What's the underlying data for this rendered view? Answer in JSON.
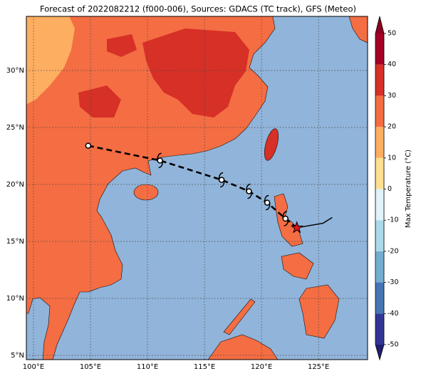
{
  "title": "Forecast of 2022082212 (f000-006), Sources: GDACS (TC track), GFS (Meteo)",
  "map": {
    "xlim": [
      99.375,
      129.3
    ],
    "ylim": [
      4.625,
      34.75
    ],
    "lon_ticks": [
      {
        "value": 100,
        "label": "100°E"
      },
      {
        "value": 105,
        "label": "105°E"
      },
      {
        "value": 110,
        "label": "110°E"
      },
      {
        "value": 115,
        "label": "115°E"
      },
      {
        "value": 120,
        "label": "120°E"
      },
      {
        "value": 125,
        "label": "125°E"
      }
    ],
    "lat_ticks": [
      {
        "value": 5,
        "label": "5°N"
      },
      {
        "value": 10,
        "label": "10°N"
      },
      {
        "value": 15,
        "label": "15°N"
      },
      {
        "value": 20,
        "label": "20°N"
      },
      {
        "value": 25,
        "label": "25°N"
      },
      {
        "value": 30,
        "label": "30°N"
      }
    ],
    "ocean_color": "#91b4da"
  },
  "colorbar": {
    "label": "Max Temperature (°C)",
    "ticks": [
      -50,
      -40,
      -30,
      -20,
      -10,
      0,
      10,
      20,
      30,
      40,
      50
    ],
    "colors": [
      "#313695",
      "#4575b4",
      "#74add1",
      "#abd9e9",
      "#e0f3f8",
      "#fee090",
      "#fdae61",
      "#f46d43",
      "#d73027",
      "#a50026"
    ],
    "under_color": "#1f1f70",
    "over_color": "#8b0020"
  },
  "track": {
    "forecast": [
      [
        104.8,
        23.4
      ],
      [
        111.1,
        22.1
      ],
      [
        116.5,
        20.4
      ],
      [
        118.9,
        19.4
      ],
      [
        120.5,
        18.4
      ],
      [
        122.1,
        17.0
      ],
      [
        123.1,
        16.2
      ]
    ],
    "observed": [
      [
        123.1,
        16.2
      ],
      [
        125.4,
        16.6
      ],
      [
        126.2,
        17.1
      ]
    ],
    "current": [
      123.1,
      16.2
    ]
  }
}
